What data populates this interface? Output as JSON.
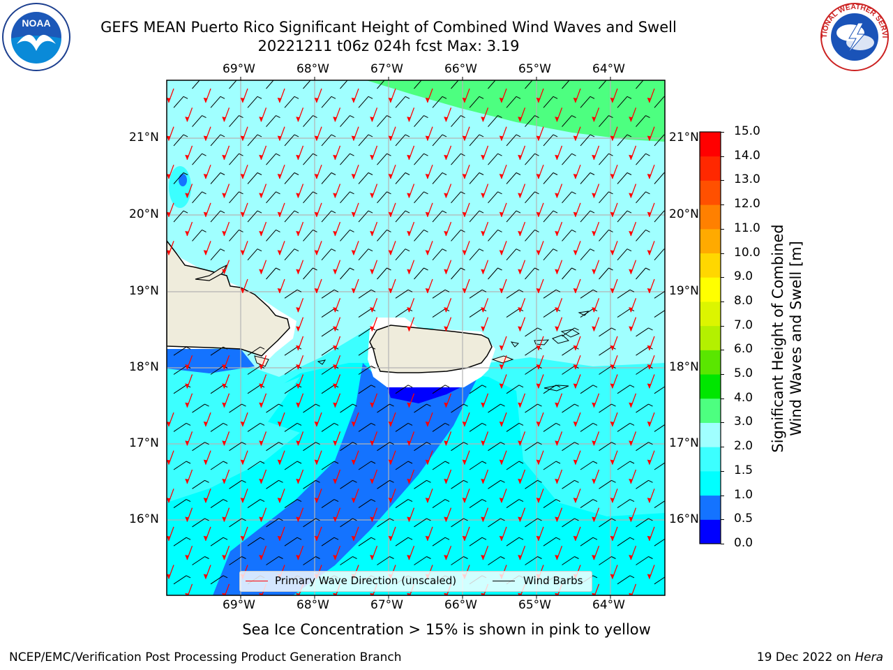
{
  "header": {
    "title_line1": "GEFS MEAN Puerto Rico Significant Height of Combined Wind Waves and Swell",
    "title_line2": "20221211 t06z 024h fcst   Max: 3.19"
  },
  "logos": {
    "left": {
      "icon": "noaa-logo",
      "text": "NOAA"
    },
    "right": {
      "icon": "national-weather-service-logo",
      "text": "NATIONAL WEATHER SERVICE"
    }
  },
  "map": {
    "lon_labels": [
      "69°W",
      "68°W",
      "67°W",
      "66°W",
      "65°W",
      "64°W"
    ],
    "lat_labels": [
      "21°N",
      "20°N",
      "19°N",
      "18°N",
      "17°N",
      "16°N"
    ],
    "lon_range": [
      -70.0,
      -63.25
    ],
    "lat_range": [
      15.0,
      21.75
    ],
    "grid": true,
    "colors": {
      "land": "#efecdc",
      "coast": "#000000",
      "wave_arrow": "#ff0000",
      "wind_barb": "#000000",
      "grid": "#b3b3b3"
    }
  },
  "legend": {
    "items": [
      {
        "label": "Primary Wave Direction (unscaled)",
        "color": "#ff0000"
      },
      {
        "label": "Wind Barbs",
        "color": "#000000"
      }
    ],
    "placement": "lower-center"
  },
  "colorbar": {
    "title_line1": "Significant Height of Combined",
    "title_line2": "Wind Waves and Swell [m]",
    "ticks": [
      "0.0",
      "0.5",
      "1.0",
      "1.5",
      "2.0",
      "3.0",
      "4.0",
      "5.0",
      "6.0",
      "7.0",
      "8.0",
      "9.0",
      "10.0",
      "11.0",
      "12.0",
      "13.0",
      "14.0",
      "15.0"
    ],
    "colors": [
      "#0000ff",
      "#1473ff",
      "#00ffff",
      "#3cffff",
      "#a0ffff",
      "#4dff80",
      "#00e600",
      "#5ae600",
      "#b4f000",
      "#dcf500",
      "#ffff00",
      "#ffd700",
      "#ffaa00",
      "#ff8000",
      "#ff5000",
      "#ff2800",
      "#ff0000"
    ]
  },
  "caption": "Sea Ice Concentration > 15% is shown in pink to yellow",
  "footer": {
    "left": "NCEP/EMC/Verification Post Processing Product Generation Branch",
    "right_date": "19 Dec 2022 on ",
    "right_host": "Hera"
  }
}
